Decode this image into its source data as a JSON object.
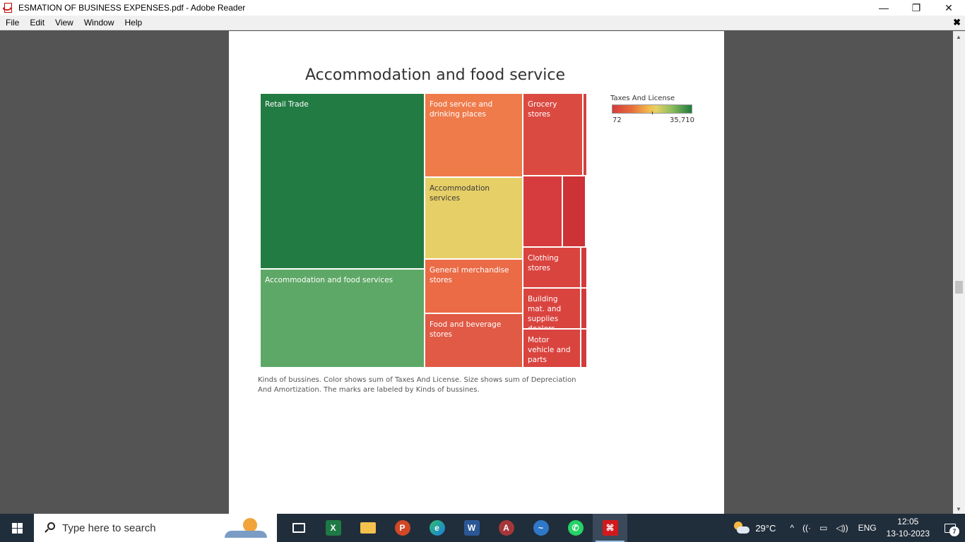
{
  "window": {
    "title": "ESMATION OF BUSINESS EXPENSES.pdf - Adobe Reader",
    "minimize": "—",
    "restore": "❐",
    "close": "✕"
  },
  "menu": {
    "items": [
      "File",
      "Edit",
      "View",
      "Window",
      "Help"
    ],
    "close": "✖"
  },
  "scrollbar": {
    "up": "▲",
    "down": "▼"
  },
  "page": {
    "chart_title": "Accommodation and food service",
    "caption": "Kinds of bussines.  Color shows sum of Taxes And License.  Size shows sum of Depreciation And Amortization.  The marks are labeled by Kinds of bussines."
  },
  "chart_data": {
    "type": "treemap",
    "title": "Accommodation and food service",
    "size_measure": "sum of Depreciation And Amortization",
    "color_measure": "Taxes And License",
    "legend": {
      "title": "Taxes And License",
      "min": "72",
      "max": "35,710",
      "placement": "top-right"
    },
    "cells": [
      {
        "label": "Retail Trade",
        "color": "#227b42"
      },
      {
        "label": "Accommodation and food services",
        "color": "#5ea867"
      },
      {
        "label": "Food service and drinking places",
        "color": "#ef7b4b"
      },
      {
        "label": "Accommodation services",
        "color": "#e6cf66"
      },
      {
        "label": "General merchandise stores",
        "color": "#ea6b46"
      },
      {
        "label": "Food and beverage stores",
        "color": "#e05a45"
      },
      {
        "label": "Grocery stores",
        "color": "#db4a41"
      },
      {
        "label": "Clothing stores",
        "color": "#d9443f"
      },
      {
        "label": "Building mat. and supplies dealers",
        "color": "#d9443f"
      },
      {
        "label": "Motor vehicle and parts",
        "color": "#d9443f"
      },
      {
        "label": "",
        "color": "#d63c3d"
      },
      {
        "label": "",
        "color": "#cc3236"
      },
      {
        "label": "",
        "color": "#d4413e"
      },
      {
        "label": "",
        "color": "#d33b3b"
      },
      {
        "label": "",
        "color": "#d33b3b"
      },
      {
        "label": "",
        "color": "#d33b3b"
      }
    ]
  },
  "taskbar": {
    "search_placeholder": "Type here to search",
    "apps": [
      {
        "name": "task-view-icon",
        "glyph": ""
      },
      {
        "name": "excel-icon",
        "glyph": "X"
      },
      {
        "name": "file-explorer-icon",
        "glyph": ""
      },
      {
        "name": "powerpoint-icon",
        "glyph": "P"
      },
      {
        "name": "edge-icon",
        "glyph": "e"
      },
      {
        "name": "word-icon",
        "glyph": "W"
      },
      {
        "name": "access-icon",
        "glyph": "A"
      },
      {
        "name": "app-icon",
        "glyph": "~"
      },
      {
        "name": "whatsapp-icon",
        "glyph": "✆"
      },
      {
        "name": "acrobat-icon",
        "glyph": "⌘"
      }
    ],
    "weather": "29°C",
    "chevron": "^",
    "wifi": "((·",
    "battery": "▭",
    "volume": "◁))",
    "language": "ENG",
    "time": "12:05",
    "date": "13-10-2023",
    "notifications": "7"
  }
}
